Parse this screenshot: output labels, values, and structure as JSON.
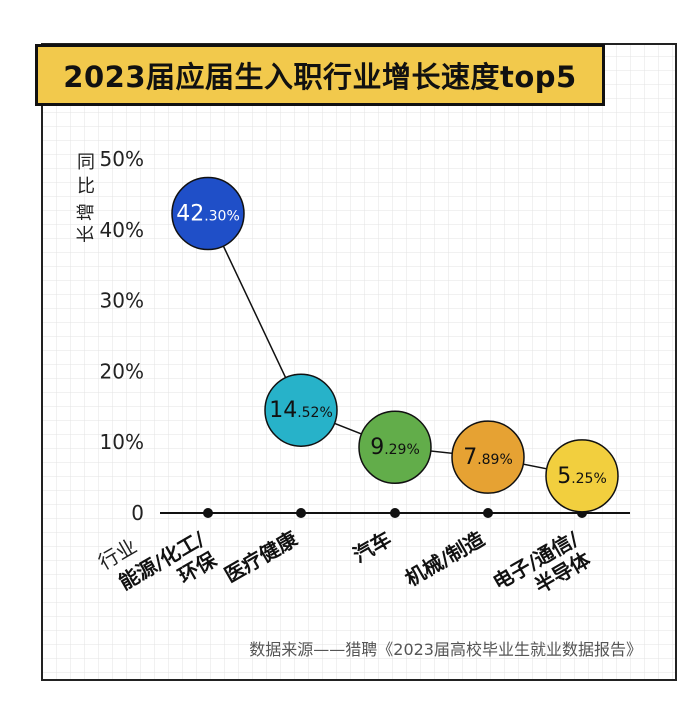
{
  "chart_data": {
    "type": "line",
    "title": "2023届应届生入职行业增长速度top5",
    "ylabel": "同比增长",
    "xlabel": "行业",
    "ylim": [
      0,
      50
    ],
    "yticks": [
      "50%",
      "40%",
      "30%",
      "20%",
      "10%",
      "0"
    ],
    "categories": [
      "能源/化工/环保",
      "医疗健康",
      "汽车",
      "机械/制造",
      "电子/通信/半导体"
    ],
    "category_lines": [
      [
        "能源/化工/",
        "环保"
      ],
      [
        "医疗健康"
      ],
      [
        "汽车"
      ],
      [
        "机械/制造"
      ],
      [
        "电子/通信/",
        "半导体"
      ]
    ],
    "series": [
      {
        "values": [
          42.3,
          14.52,
          9.29,
          7.89,
          5.25
        ]
      }
    ],
    "value_labels": [
      {
        "int": "42",
        "dec": ".30%"
      },
      {
        "int": "14",
        "dec": ".52%"
      },
      {
        "int": "9",
        "dec": ".29%"
      },
      {
        "int": "7",
        "dec": ".89%"
      },
      {
        "int": "5",
        "dec": ".25%"
      }
    ],
    "colors": [
      "#1f4fc8",
      "#27b2c9",
      "#62ad4a",
      "#e6a233",
      "#f2cf3e"
    ],
    "label_colors": [
      "#ffffff",
      "#111111",
      "#111111",
      "#111111",
      "#111111"
    ]
  },
  "source_text": "数据来源——猎聘《2023届高校毕业生就业数据报告》"
}
